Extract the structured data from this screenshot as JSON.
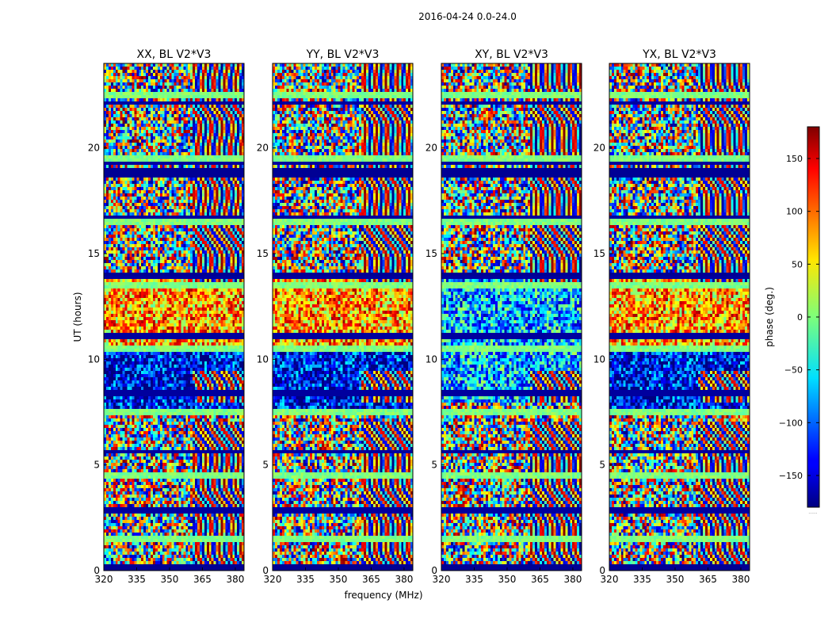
{
  "figure": {
    "suptitle": "2016-04-24 0.0-24.0"
  },
  "chart_data": {
    "type": "heatmap",
    "panels": [
      {
        "title": "XX, BL V2*V3",
        "pol": "XX"
      },
      {
        "title": "YY, BL V2*V3",
        "pol": "YY"
      },
      {
        "title": "XY, BL V2*V3",
        "pol": "XY"
      },
      {
        "title": "YX, BL V2*V3",
        "pol": "YX"
      }
    ],
    "xlabel": "frequency (MHz)",
    "ylabel": "UT (hours)",
    "xlim": [
      320,
      384
    ],
    "ylim": [
      0,
      24
    ],
    "xticks": [
      320,
      335,
      350,
      365,
      380
    ],
    "yticks": [
      0,
      5,
      10,
      15,
      20
    ],
    "colorbar": {
      "label": "phase (deg.)",
      "range": [
        -180,
        180
      ],
      "ticks": [
        150,
        100,
        50,
        0,
        -50,
        -100,
        -150
      ],
      "tick_labels": [
        "150",
        "100",
        "50",
        "0",
        "−50",
        "−100",
        "−150"
      ],
      "colormap": "jet",
      "bottom_note": "......"
    }
  }
}
